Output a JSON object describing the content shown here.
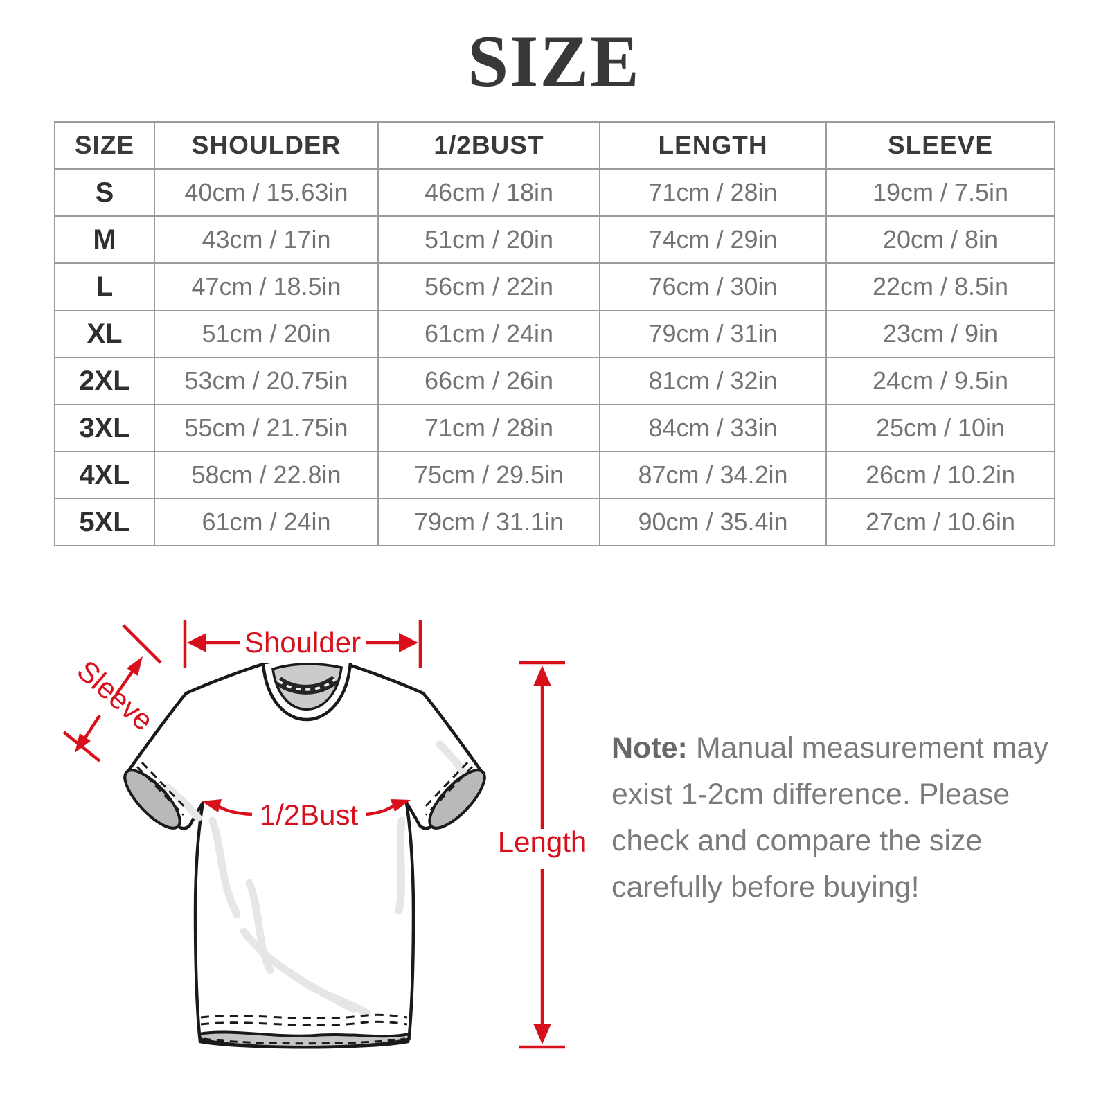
{
  "title": "SIZE",
  "table": {
    "headers": [
      "SIZE",
      "SHOULDER",
      "1/2BUST",
      "LENGTH",
      "SLEEVE"
    ],
    "rows": [
      {
        "size": "S",
        "shoulder": "40cm / 15.63in",
        "half_bust": "46cm / 18in",
        "length": "71cm / 28in",
        "sleeve": "19cm / 7.5in"
      },
      {
        "size": "M",
        "shoulder": "43cm / 17in",
        "half_bust": "51cm / 20in",
        "length": "74cm / 29in",
        "sleeve": "20cm / 8in"
      },
      {
        "size": "L",
        "shoulder": "47cm / 18.5in",
        "half_bust": "56cm / 22in",
        "length": "76cm / 30in",
        "sleeve": "22cm / 8.5in"
      },
      {
        "size": "XL",
        "shoulder": "51cm / 20in",
        "half_bust": "61cm / 24in",
        "length": "79cm / 31in",
        "sleeve": "23cm / 9in"
      },
      {
        "size": "2XL",
        "shoulder": "53cm / 20.75in",
        "half_bust": "66cm / 26in",
        "length": "81cm / 32in",
        "sleeve": "24cm / 9.5in"
      },
      {
        "size": "3XL",
        "shoulder": "55cm / 21.75in",
        "half_bust": "71cm / 28in",
        "length": "84cm / 33in",
        "sleeve": "25cm / 10in"
      },
      {
        "size": "4XL",
        "shoulder": "58cm / 22.8in",
        "half_bust": "75cm / 29.5in",
        "length": "87cm / 34.2in",
        "sleeve": "26cm / 10.2in"
      },
      {
        "size": "5XL",
        "shoulder": "61cm / 24in",
        "half_bust": "79cm / 31.1in",
        "length": "90cm / 35.4in",
        "sleeve": "27cm / 10.6in"
      }
    ]
  },
  "diagram": {
    "shoulder_label": "Shoulder",
    "sleeve_label": "Sleeve",
    "half_bust_label": "1/2Bust",
    "length_label": "Length"
  },
  "note": {
    "label": "Note:",
    "line1": " Manual measurement may",
    "line2": "exist 1-2cm difference. Please",
    "line3": "check and compare the size",
    "line4": "carefully before buying!"
  },
  "colors": {
    "accent_red": "#d8101c",
    "heading_text": "#38383a",
    "value_text": "#737373",
    "table_border": "#9b9b9b"
  }
}
